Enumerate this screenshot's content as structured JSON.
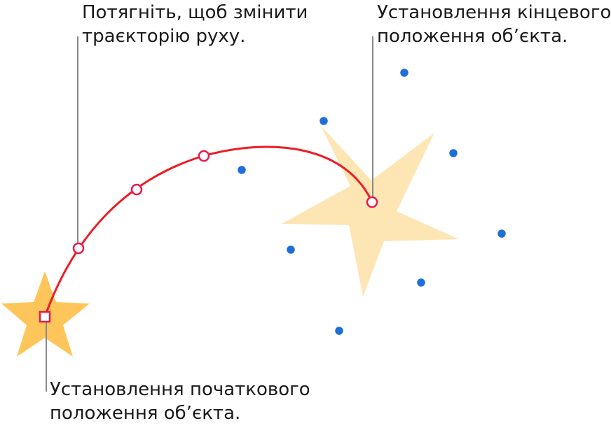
{
  "callouts": {
    "drag_path": {
      "line1": "Потягніть, щоб змінити",
      "line2": "траєкторію руху."
    },
    "end_position": {
      "line1": "Установлення кінцевого",
      "line2": "положення об’єкта."
    },
    "start_position": {
      "line1": "Установлення початкового",
      "line2": "положення об’єкта."
    }
  },
  "colors": {
    "path": "#ee1c25",
    "start_star": "#fec65a",
    "end_star": "#fde6b4",
    "selection_handle": "#1e6fd8",
    "leader_line": "#8a8a8a"
  },
  "icons": {
    "start_object": "star-icon",
    "end_object": "star-icon"
  }
}
